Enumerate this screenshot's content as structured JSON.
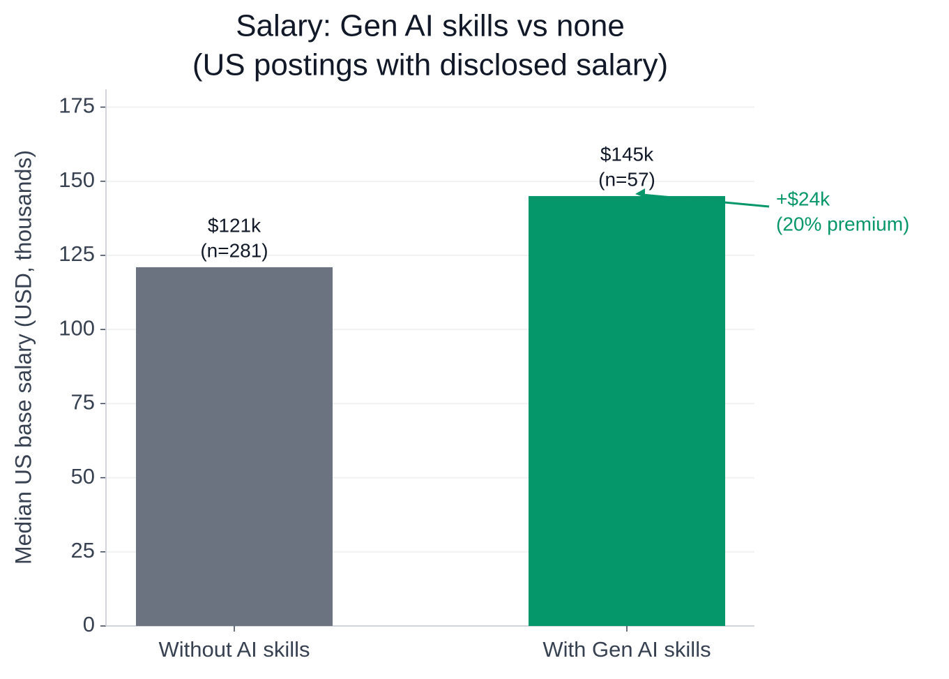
{
  "chart_data": {
    "type": "bar",
    "title": [
      "Salary: Gen AI skills vs none",
      "(US postings with disclosed salary)"
    ],
    "y_label": "Median US base salary (USD, thousands)",
    "categories": [
      "Without AI skills",
      "With Gen AI skills"
    ],
    "values": [
      121,
      145
    ],
    "value_labels": [
      "$121k",
      "$145k"
    ],
    "sample_labels": [
      "(n=281)",
      "(n=57)"
    ],
    "colors": [
      "#6b7280",
      "#059669"
    ],
    "ylim": [
      0,
      181
    ],
    "yticks": [
      0,
      25,
      50,
      75,
      100,
      125,
      150,
      175
    ],
    "grid": true,
    "annotation": {
      "lines": [
        "+$24k",
        "(20% premium)"
      ],
      "color": "#059669"
    }
  }
}
